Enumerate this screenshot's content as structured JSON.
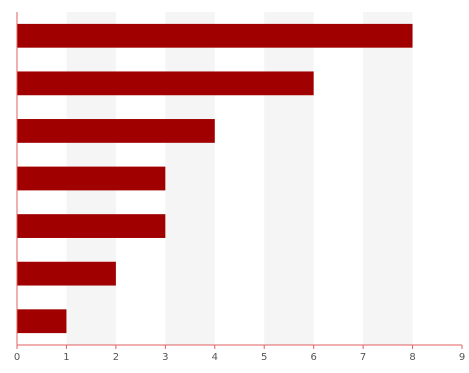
{
  "chart_data": {
    "type": "bar",
    "orientation": "horizontal",
    "categories": [
      "",
      "",
      "",
      "",
      "",
      "",
      ""
    ],
    "values": [
      8,
      6,
      4,
      3,
      3,
      2,
      1
    ],
    "xlim": [
      0,
      9
    ],
    "x_ticks": [
      "0",
      "1",
      "2",
      "3",
      "4",
      "5",
      "6",
      "7",
      "8",
      "9"
    ],
    "title": "",
    "xlabel": "",
    "ylabel": "",
    "grid": "alternating vertical bands",
    "legend": "none",
    "bar_color": "#a00000",
    "band_color": "#f5f5f5",
    "axis_color": "#e06060"
  }
}
